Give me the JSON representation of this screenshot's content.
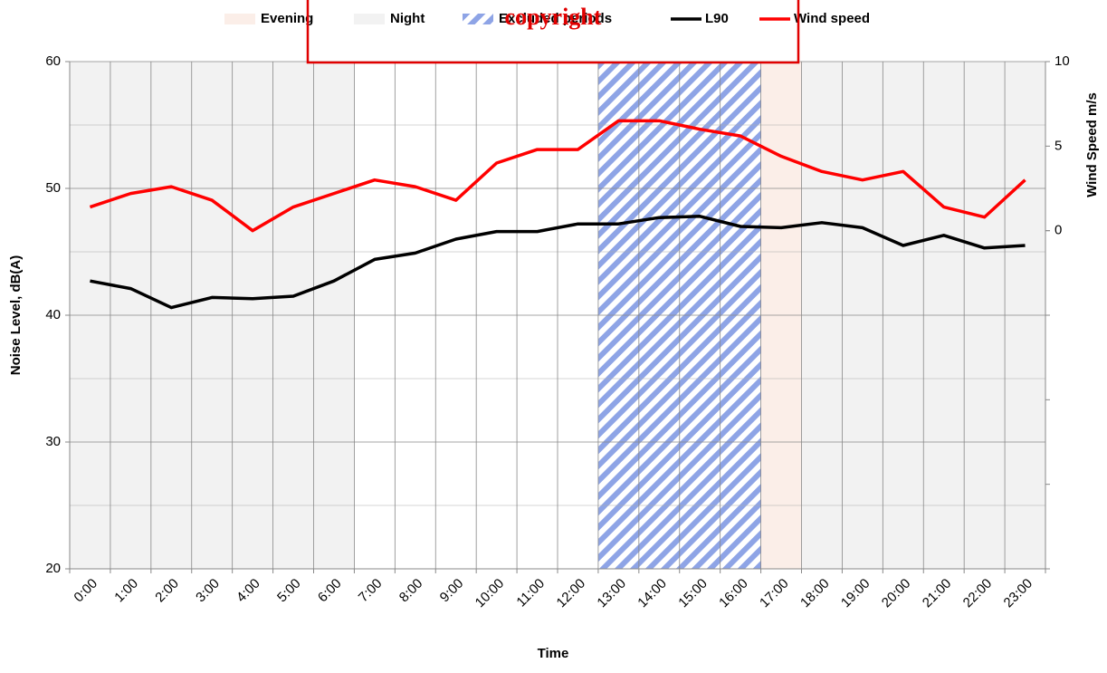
{
  "chart_data": {
    "type": "line",
    "xlabel": "Time",
    "ylabel": "Noise Level, dB(A)",
    "y2label": "Wind Speed m/s",
    "watermark": "copyright",
    "categories": [
      "0:00",
      "1:00",
      "2:00",
      "3:00",
      "4:00",
      "5:00",
      "6:00",
      "7:00",
      "8:00",
      "9:00",
      "10:00",
      "11:00",
      "12:00",
      "13:00",
      "14:00",
      "15:00",
      "16:00",
      "17:00",
      "18:00",
      "19:00",
      "20:00",
      "21:00",
      "22:00",
      "23:00"
    ],
    "series": [
      {
        "name": "L90",
        "color": "#000000",
        "values": [
          42.7,
          42.1,
          40.6,
          41.4,
          41.3,
          41.5,
          42.7,
          44.4,
          44.9,
          46.0,
          46.6,
          46.6,
          47.2,
          47.2,
          47.7,
          47.8,
          47.0,
          46.9,
          47.3,
          46.9,
          45.5,
          46.3,
          45.3,
          45.5
        ]
      },
      {
        "name": "Wind speed",
        "color": "#ff0000",
        "axis": "y2",
        "values": [
          1.4,
          2.2,
          2.6,
          1.8,
          0,
          1.4,
          2.2,
          3.0,
          2.6,
          1.8,
          4.0,
          4.8,
          4.8,
          6.5,
          6.5,
          6.0,
          5.6,
          4.4,
          3.5,
          3.0,
          3.5,
          1.4,
          0.8,
          3.0
        ]
      }
    ],
    "periods": [
      {
        "name": "Evening",
        "color": "#fbeee8",
        "ranges": [
          [
            "17:00",
            "17:00"
          ]
        ]
      },
      {
        "name": "Night",
        "color": "#f2f2f2",
        "ranges": [
          [
            "0:00",
            "6:00"
          ],
          [
            "18:00",
            "23:00"
          ]
        ]
      },
      {
        "name": "Excluded periods",
        "color": "#8ea4e6",
        "hatched": true,
        "ranges": [
          [
            "13:00",
            "16:00"
          ]
        ]
      }
    ],
    "ylim": [
      20,
      60
    ],
    "yticks": [
      20,
      30,
      40,
      50,
      60
    ],
    "y2lim": [
      -20,
      10
    ],
    "y2ticks": [
      0,
      5,
      10
    ],
    "grid": true
  }
}
